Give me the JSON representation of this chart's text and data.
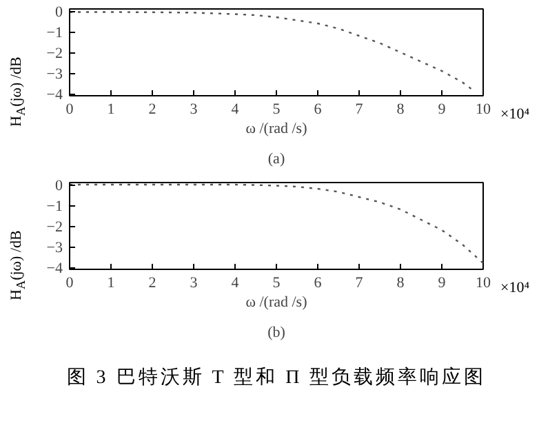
{
  "chart_data": [
    {
      "type": "line",
      "xlabel": "ω /(rad /s)",
      "ylabel": "H$_{A}$(jω) /dB",
      "subtitle": "(a)",
      "annotations": [
        "×10⁴"
      ],
      "series": [
        {
          "color": "#555555",
          "x": [
            0,
            1,
            2,
            3,
            4,
            4.5,
            5,
            5.5,
            6,
            6.5,
            7,
            7.5,
            8,
            8.5,
            9,
            9.5,
            9.8
          ],
          "values": [
            -0.05,
            -0.05,
            -0.06,
            -0.08,
            -0.15,
            -0.2,
            -0.3,
            -0.45,
            -0.6,
            -0.85,
            -1.2,
            -1.55,
            -2.0,
            -2.45,
            -2.9,
            -3.45,
            -3.9
          ]
        }
      ],
      "xlim": [
        0,
        10
      ],
      "xticks": [
        0,
        1,
        2,
        3,
        4,
        5,
        6,
        7,
        8,
        9,
        10
      ],
      "ylim": [
        -4.1,
        0.1
      ],
      "yticks": [
        -4,
        -3,
        -2,
        -1,
        0
      ],
      "grid": false,
      "line_style": "dotted"
    },
    {
      "type": "line",
      "xlabel": "ω /(rad /s)",
      "ylabel": "H$_{A}$(jω) /dB",
      "subtitle": "(b)",
      "annotations": [
        "×10⁴",
        "图 3   巴特沃斯 T 型和 Π 型负载频率响应图"
      ],
      "series": [
        {
          "color": "#555555",
          "x": [
            0,
            1,
            2,
            3,
            4,
            4.5,
            5,
            5.5,
            6,
            6.5,
            7,
            7.5,
            8,
            8.5,
            9,
            9.5,
            10
          ],
          "values": [
            0,
            0,
            0,
            0,
            0,
            -0.02,
            -0.05,
            -0.1,
            -0.2,
            -0.35,
            -0.6,
            -0.85,
            -1.2,
            -1.7,
            -2.2,
            -2.9,
            -3.8
          ]
        }
      ],
      "xlim": [
        0,
        10
      ],
      "xticks": [
        0,
        1,
        2,
        3,
        4,
        5,
        6,
        7,
        8,
        9,
        10
      ],
      "ylim": [
        -4.1,
        0.1
      ],
      "yticks": [
        -4,
        -3,
        -2,
        -1,
        0
      ],
      "grid": false,
      "line_style": "dotted"
    }
  ]
}
